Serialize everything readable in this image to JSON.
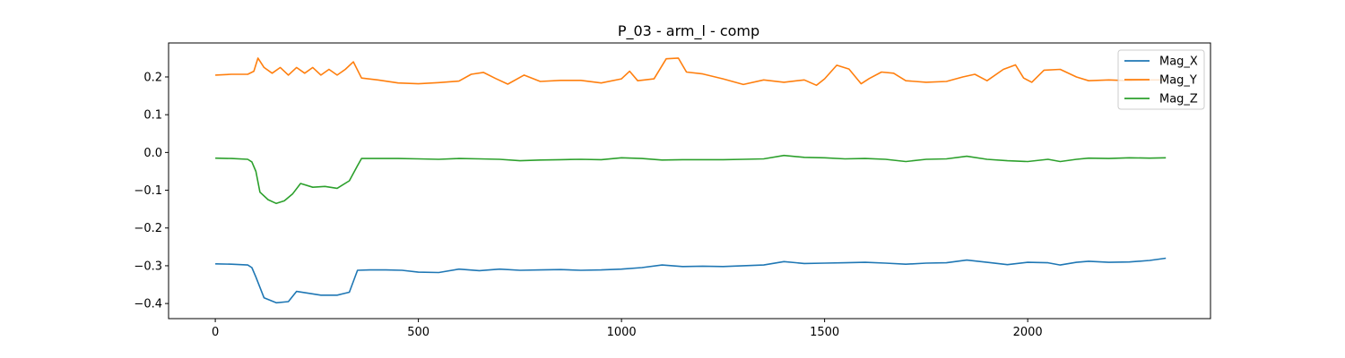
{
  "chart_data": {
    "type": "line",
    "title": "P_03 - arm_l - comp",
    "xlabel": "",
    "ylabel": "",
    "xlim": [
      -115,
      2450
    ],
    "ylim": [
      -0.44,
      0.29
    ],
    "xticks": [
      0,
      500,
      1000,
      1500,
      2000
    ],
    "yticks": [
      -0.4,
      -0.3,
      -0.2,
      -0.1,
      0.0,
      0.1,
      0.2
    ],
    "ytick_labels": [
      "−0.4",
      "−0.3",
      "−0.2",
      "−0.1",
      "0.0",
      "0.1",
      "0.2"
    ],
    "grid": false,
    "legend_position": "top-right",
    "series": [
      {
        "name": "Mag_X",
        "color": "#1f77b4",
        "x": [
          0,
          40,
          80,
          90,
          100,
          120,
          150,
          180,
          200,
          230,
          260,
          300,
          330,
          350,
          380,
          420,
          460,
          500,
          550,
          600,
          650,
          700,
          750,
          800,
          850,
          900,
          950,
          1000,
          1050,
          1100,
          1150,
          1200,
          1250,
          1300,
          1350,
          1400,
          1450,
          1500,
          1550,
          1600,
          1650,
          1700,
          1750,
          1800,
          1850,
          1900,
          1950,
          2000,
          2050,
          2080,
          2120,
          2150,
          2200,
          2250,
          2300,
          2340
        ],
        "y": [
          -0.295,
          -0.296,
          -0.298,
          -0.305,
          -0.33,
          -0.385,
          -0.398,
          -0.395,
          -0.368,
          -0.373,
          -0.378,
          -0.378,
          -0.37,
          -0.312,
          -0.311,
          -0.311,
          -0.312,
          -0.317,
          -0.318,
          -0.309,
          -0.313,
          -0.309,
          -0.312,
          -0.311,
          -0.31,
          -0.312,
          -0.311,
          -0.309,
          -0.305,
          -0.298,
          -0.302,
          -0.301,
          -0.302,
          -0.3,
          -0.298,
          -0.289,
          -0.294,
          -0.293,
          -0.292,
          -0.291,
          -0.293,
          -0.296,
          -0.293,
          -0.292,
          -0.285,
          -0.291,
          -0.297,
          -0.291,
          -0.292,
          -0.298,
          -0.291,
          -0.288,
          -0.291,
          -0.29,
          -0.286,
          -0.28
        ]
      },
      {
        "name": "Mag_Y",
        "color": "#ff7f0e",
        "x": [
          0,
          40,
          80,
          95,
          105,
          120,
          140,
          160,
          180,
          200,
          220,
          240,
          260,
          280,
          300,
          320,
          340,
          360,
          400,
          450,
          500,
          550,
          600,
          630,
          660,
          690,
          720,
          760,
          800,
          850,
          900,
          950,
          1000,
          1020,
          1040,
          1080,
          1110,
          1140,
          1160,
          1200,
          1250,
          1300,
          1350,
          1400,
          1450,
          1480,
          1500,
          1530,
          1560,
          1590,
          1610,
          1640,
          1670,
          1700,
          1750,
          1800,
          1840,
          1870,
          1900,
          1940,
          1970,
          1990,
          2010,
          2040,
          2080,
          2120,
          2150,
          2200,
          2250,
          2300,
          2340
        ],
        "y": [
          0.205,
          0.207,
          0.207,
          0.215,
          0.25,
          0.225,
          0.21,
          0.225,
          0.205,
          0.225,
          0.21,
          0.225,
          0.205,
          0.22,
          0.205,
          0.22,
          0.24,
          0.197,
          0.192,
          0.184,
          0.182,
          0.185,
          0.189,
          0.207,
          0.212,
          0.196,
          0.181,
          0.205,
          0.188,
          0.191,
          0.191,
          0.184,
          0.195,
          0.215,
          0.19,
          0.195,
          0.248,
          0.25,
          0.213,
          0.208,
          0.195,
          0.18,
          0.192,
          0.186,
          0.192,
          0.178,
          0.195,
          0.231,
          0.221,
          0.182,
          0.196,
          0.213,
          0.21,
          0.19,
          0.186,
          0.188,
          0.2,
          0.207,
          0.19,
          0.22,
          0.232,
          0.197,
          0.186,
          0.218,
          0.22,
          0.2,
          0.19,
          0.192,
          0.19,
          0.192,
          0.192
        ]
      },
      {
        "name": "Mag_Z",
        "color": "#2ca02c",
        "x": [
          0,
          40,
          80,
          90,
          100,
          110,
          130,
          150,
          170,
          190,
          210,
          240,
          270,
          300,
          330,
          350,
          360,
          400,
          450,
          500,
          550,
          600,
          650,
          700,
          750,
          800,
          850,
          900,
          950,
          1000,
          1050,
          1100,
          1150,
          1200,
          1250,
          1300,
          1350,
          1400,
          1450,
          1500,
          1550,
          1600,
          1650,
          1700,
          1750,
          1800,
          1850,
          1900,
          1950,
          2000,
          2050,
          2080,
          2120,
          2150,
          2200,
          2250,
          2300,
          2340
        ],
        "y": [
          -0.015,
          -0.016,
          -0.018,
          -0.025,
          -0.05,
          -0.105,
          -0.125,
          -0.135,
          -0.128,
          -0.11,
          -0.082,
          -0.092,
          -0.09,
          -0.095,
          -0.075,
          -0.035,
          -0.016,
          -0.016,
          -0.016,
          -0.017,
          -0.018,
          -0.016,
          -0.017,
          -0.018,
          -0.022,
          -0.02,
          -0.019,
          -0.018,
          -0.019,
          -0.014,
          -0.016,
          -0.02,
          -0.019,
          -0.019,
          -0.019,
          -0.018,
          -0.017,
          -0.008,
          -0.013,
          -0.014,
          -0.017,
          -0.016,
          -0.018,
          -0.024,
          -0.018,
          -0.017,
          -0.01,
          -0.018,
          -0.022,
          -0.024,
          -0.018,
          -0.024,
          -0.018,
          -0.015,
          -0.016,
          -0.014,
          -0.015,
          -0.014
        ]
      }
    ]
  }
}
